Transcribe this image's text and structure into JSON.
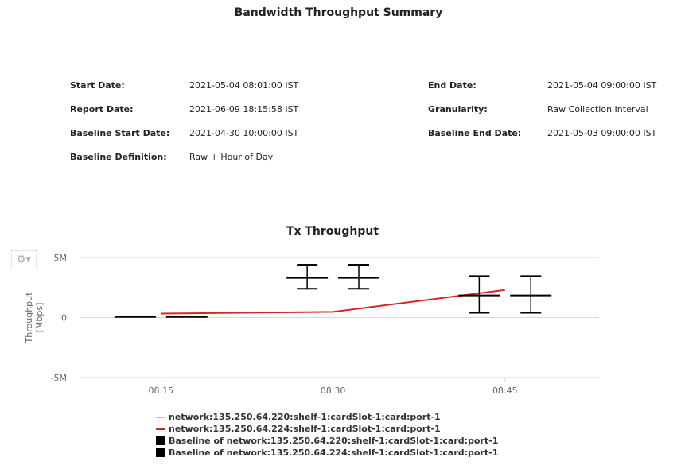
{
  "report": {
    "title": "Bandwidth Throughput Summary",
    "fields": [
      {
        "label": "Start Date:",
        "value": "2021-05-04 08:01:00 IST"
      },
      {
        "label": "End Date:",
        "value": "2021-05-04 09:00:00 IST"
      },
      {
        "label": "Report Date:",
        "value": "2021-06-09 18:15:58 IST"
      },
      {
        "label": "Granularity:",
        "value": "Raw Collection Interval"
      },
      {
        "label": "Baseline Start Date:",
        "value": "2021-04-30 10:00:00 IST"
      },
      {
        "label": "Baseline End Date:",
        "value": "2021-05-03 09:00:00 IST"
      },
      {
        "label": "Baseline Definition:",
        "value": "Raw + Hour of Day"
      }
    ]
  },
  "toolbar": {
    "icon": "gear-icon"
  },
  "chart_data": {
    "type": "line",
    "title": "Tx Throughput",
    "ylabel": "Throughput [Mbps]",
    "xlabel": "",
    "ylim": [
      -5,
      5
    ],
    "yticks": [
      {
        "v": 5,
        "label": "5M"
      },
      {
        "v": 0,
        "label": "0"
      },
      {
        "v": -5,
        "label": "-5M"
      }
    ],
    "xlim_minutes": [
      7.9,
      53.2
    ],
    "xticks": [
      {
        "v": 15,
        "label": "08:15"
      },
      {
        "v": 30,
        "label": "08:30"
      },
      {
        "v": 45,
        "label": "08:45"
      }
    ],
    "series": [
      {
        "name": "network:135.250.64.220:shelf-1:cardSlot-1:card:port-1",
        "color": "#f5c242",
        "kind": "line",
        "points": []
      },
      {
        "name": "network:135.250.64.224:shelf-1:cardSlot-1:card:port-1",
        "color": "#d62728",
        "kind": "line",
        "points": [
          [
            15,
            0.33
          ],
          [
            30,
            0.47
          ],
          [
            45,
            2.3
          ]
        ]
      },
      {
        "name": "Baseline of network:135.250.64.220:shelf-1:cardSlot-1:card:port-1",
        "color": "#000000",
        "kind": "errorbar",
        "offset": -1,
        "points": [
          [
            15,
            0.05,
            0.05,
            0.05
          ],
          [
            30,
            3.3,
            2.4,
            4.4
          ],
          [
            45,
            1.85,
            0.4,
            3.45
          ]
        ]
      },
      {
        "name": "Baseline of network:135.250.64.224:shelf-1:cardSlot-1:card:port-1",
        "color": "#000000",
        "kind": "errorbar",
        "offset": 1,
        "points": [
          [
            15,
            0.05,
            0.05,
            0.05
          ],
          [
            30,
            3.3,
            2.4,
            4.4
          ],
          [
            45,
            1.85,
            0.4,
            3.45
          ]
        ]
      }
    ],
    "legend_position": "bottom-left"
  }
}
